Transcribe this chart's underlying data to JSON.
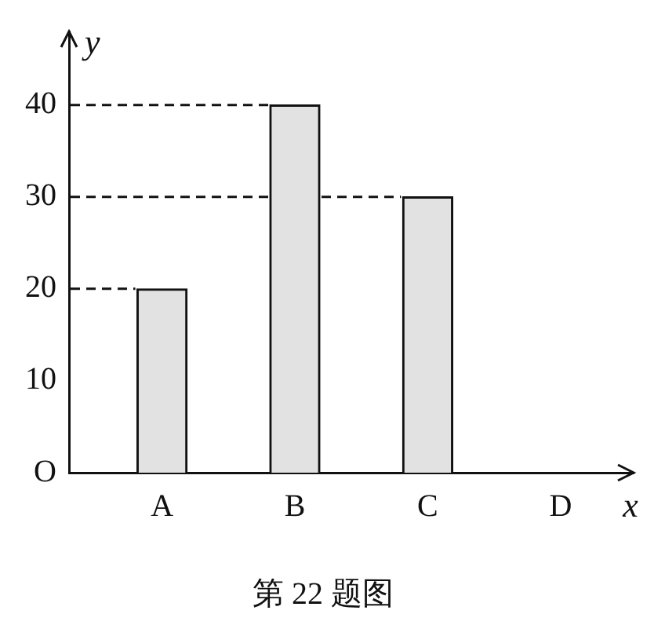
{
  "chart_data": {
    "type": "bar",
    "title": "第 22 题图",
    "xlabel": "x",
    "ylabel": "y",
    "categories": [
      "A",
      "B",
      "C",
      "D"
    ],
    "values": [
      20,
      40,
      30,
      null
    ],
    "color": "#e2e2e2",
    "ylim": [
      0,
      48
    ],
    "yticks": [
      {
        "value": 0,
        "label": "O"
      },
      10,
      20,
      30,
      40
    ],
    "ref_lines": [
      {
        "axis": "y",
        "value": 20,
        "line_style": "dashed"
      },
      {
        "axis": "y",
        "value": 30,
        "line_style": "dashed"
      },
      {
        "axis": "y",
        "value": 40,
        "line_style": "dashed"
      }
    ],
    "grid": false,
    "legend": false
  }
}
